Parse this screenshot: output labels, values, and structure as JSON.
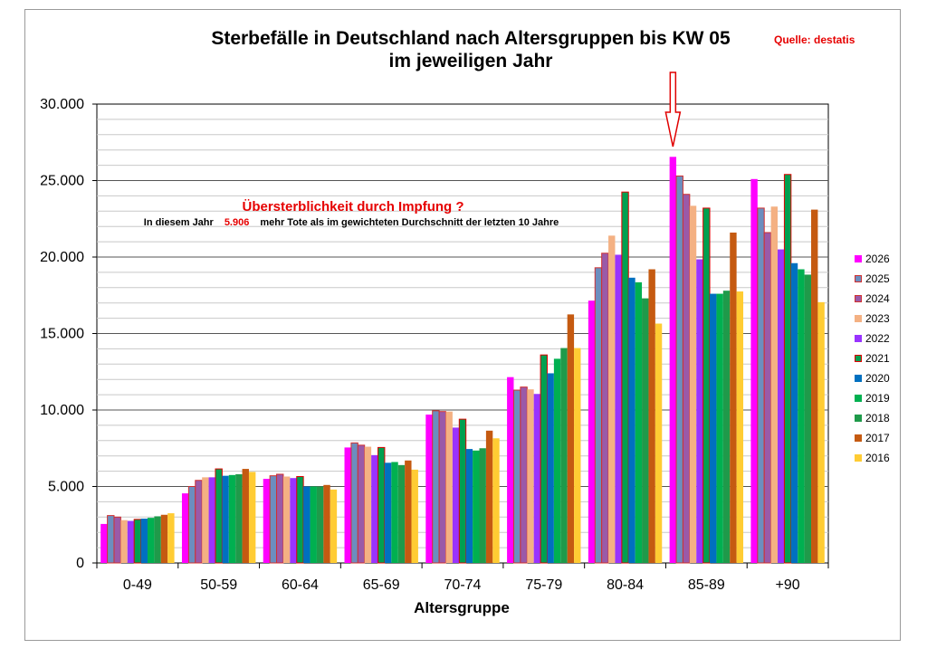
{
  "chart_data": {
    "type": "bar",
    "title": "Sterbefälle in Deutschland nach Altersgruppen bis KW 05",
    "subtitle": "im jeweiligen Jahr",
    "source": "Quelle: destatis",
    "xlabel": "Altersgruppe",
    "ylabel": "",
    "ylim": [
      0,
      30000
    ],
    "yticks": [
      "0",
      "5.000",
      "10.000",
      "15.000",
      "20.000",
      "25.000",
      "30.000"
    ],
    "grid": true,
    "legend_position": "right",
    "categories": [
      "0-49",
      "50-59",
      "60-64",
      "65-69",
      "70-74",
      "75-79",
      "80-84",
      "85-89",
      "+90"
    ],
    "series": [
      {
        "name": "2026",
        "color": "#ff00ff",
        "values": [
          2550,
          4550,
          5500,
          7550,
          9700,
          12150,
          17150,
          26550,
          25100
        ]
      },
      {
        "name": "2025",
        "color": "#6c8ebf",
        "border": "#d03030",
        "values": [
          3100,
          5000,
          5700,
          7850,
          9950,
          11300,
          19300,
          25300,
          23200
        ]
      },
      {
        "name": "2024",
        "color": "#9a5aa8",
        "border": "#d03030",
        "values": [
          3000,
          5400,
          5800,
          7700,
          9900,
          11500,
          20250,
          24100,
          21600
        ]
      },
      {
        "name": "2023",
        "color": "#f4b183",
        "values": [
          2800,
          5600,
          5650,
          7600,
          9900,
          11350,
          21400,
          23350,
          23300
        ]
      },
      {
        "name": "2022",
        "color": "#9933ff",
        "values": [
          2750,
          5600,
          5550,
          7050,
          8850,
          11050,
          20150,
          19850,
          20500
        ]
      },
      {
        "name": "2021",
        "color": "#00a050",
        "border": "#e00000",
        "values": [
          2850,
          6150,
          5650,
          7550,
          9400,
          13600,
          24250,
          23200,
          25400
        ]
      },
      {
        "name": "2020",
        "color": "#0070c0",
        "values": [
          2900,
          5700,
          5000,
          6550,
          7450,
          12400,
          18650,
          17600,
          19600
        ]
      },
      {
        "name": "2019",
        "color": "#00b050",
        "values": [
          2950,
          5750,
          5000,
          6600,
          7350,
          13350,
          18350,
          17600,
          19200
        ]
      },
      {
        "name": "2018",
        "color": "#1f9a4a",
        "values": [
          3050,
          5800,
          5000,
          6400,
          7500,
          14050,
          17300,
          17800,
          18850
        ]
      },
      {
        "name": "2017",
        "color": "#c55a11",
        "values": [
          3150,
          6150,
          5100,
          6700,
          8650,
          16250,
          19200,
          21600,
          23100
        ]
      },
      {
        "name": "2016",
        "color": "#ffcc33",
        "values": [
          3250,
          5950,
          4800,
          6100,
          8150,
          14050,
          15650,
          17750,
          17050
        ]
      }
    ],
    "annotation": {
      "headline": "Übersterblichkeit durch Impfung ?",
      "prefix": "In diesem Jahr",
      "value": "5.906",
      "suffix": "mehr Tote als im gewichteten Durchschnitt der letzten 10 Jahre"
    },
    "highlight_arrow_category": "85-89"
  }
}
